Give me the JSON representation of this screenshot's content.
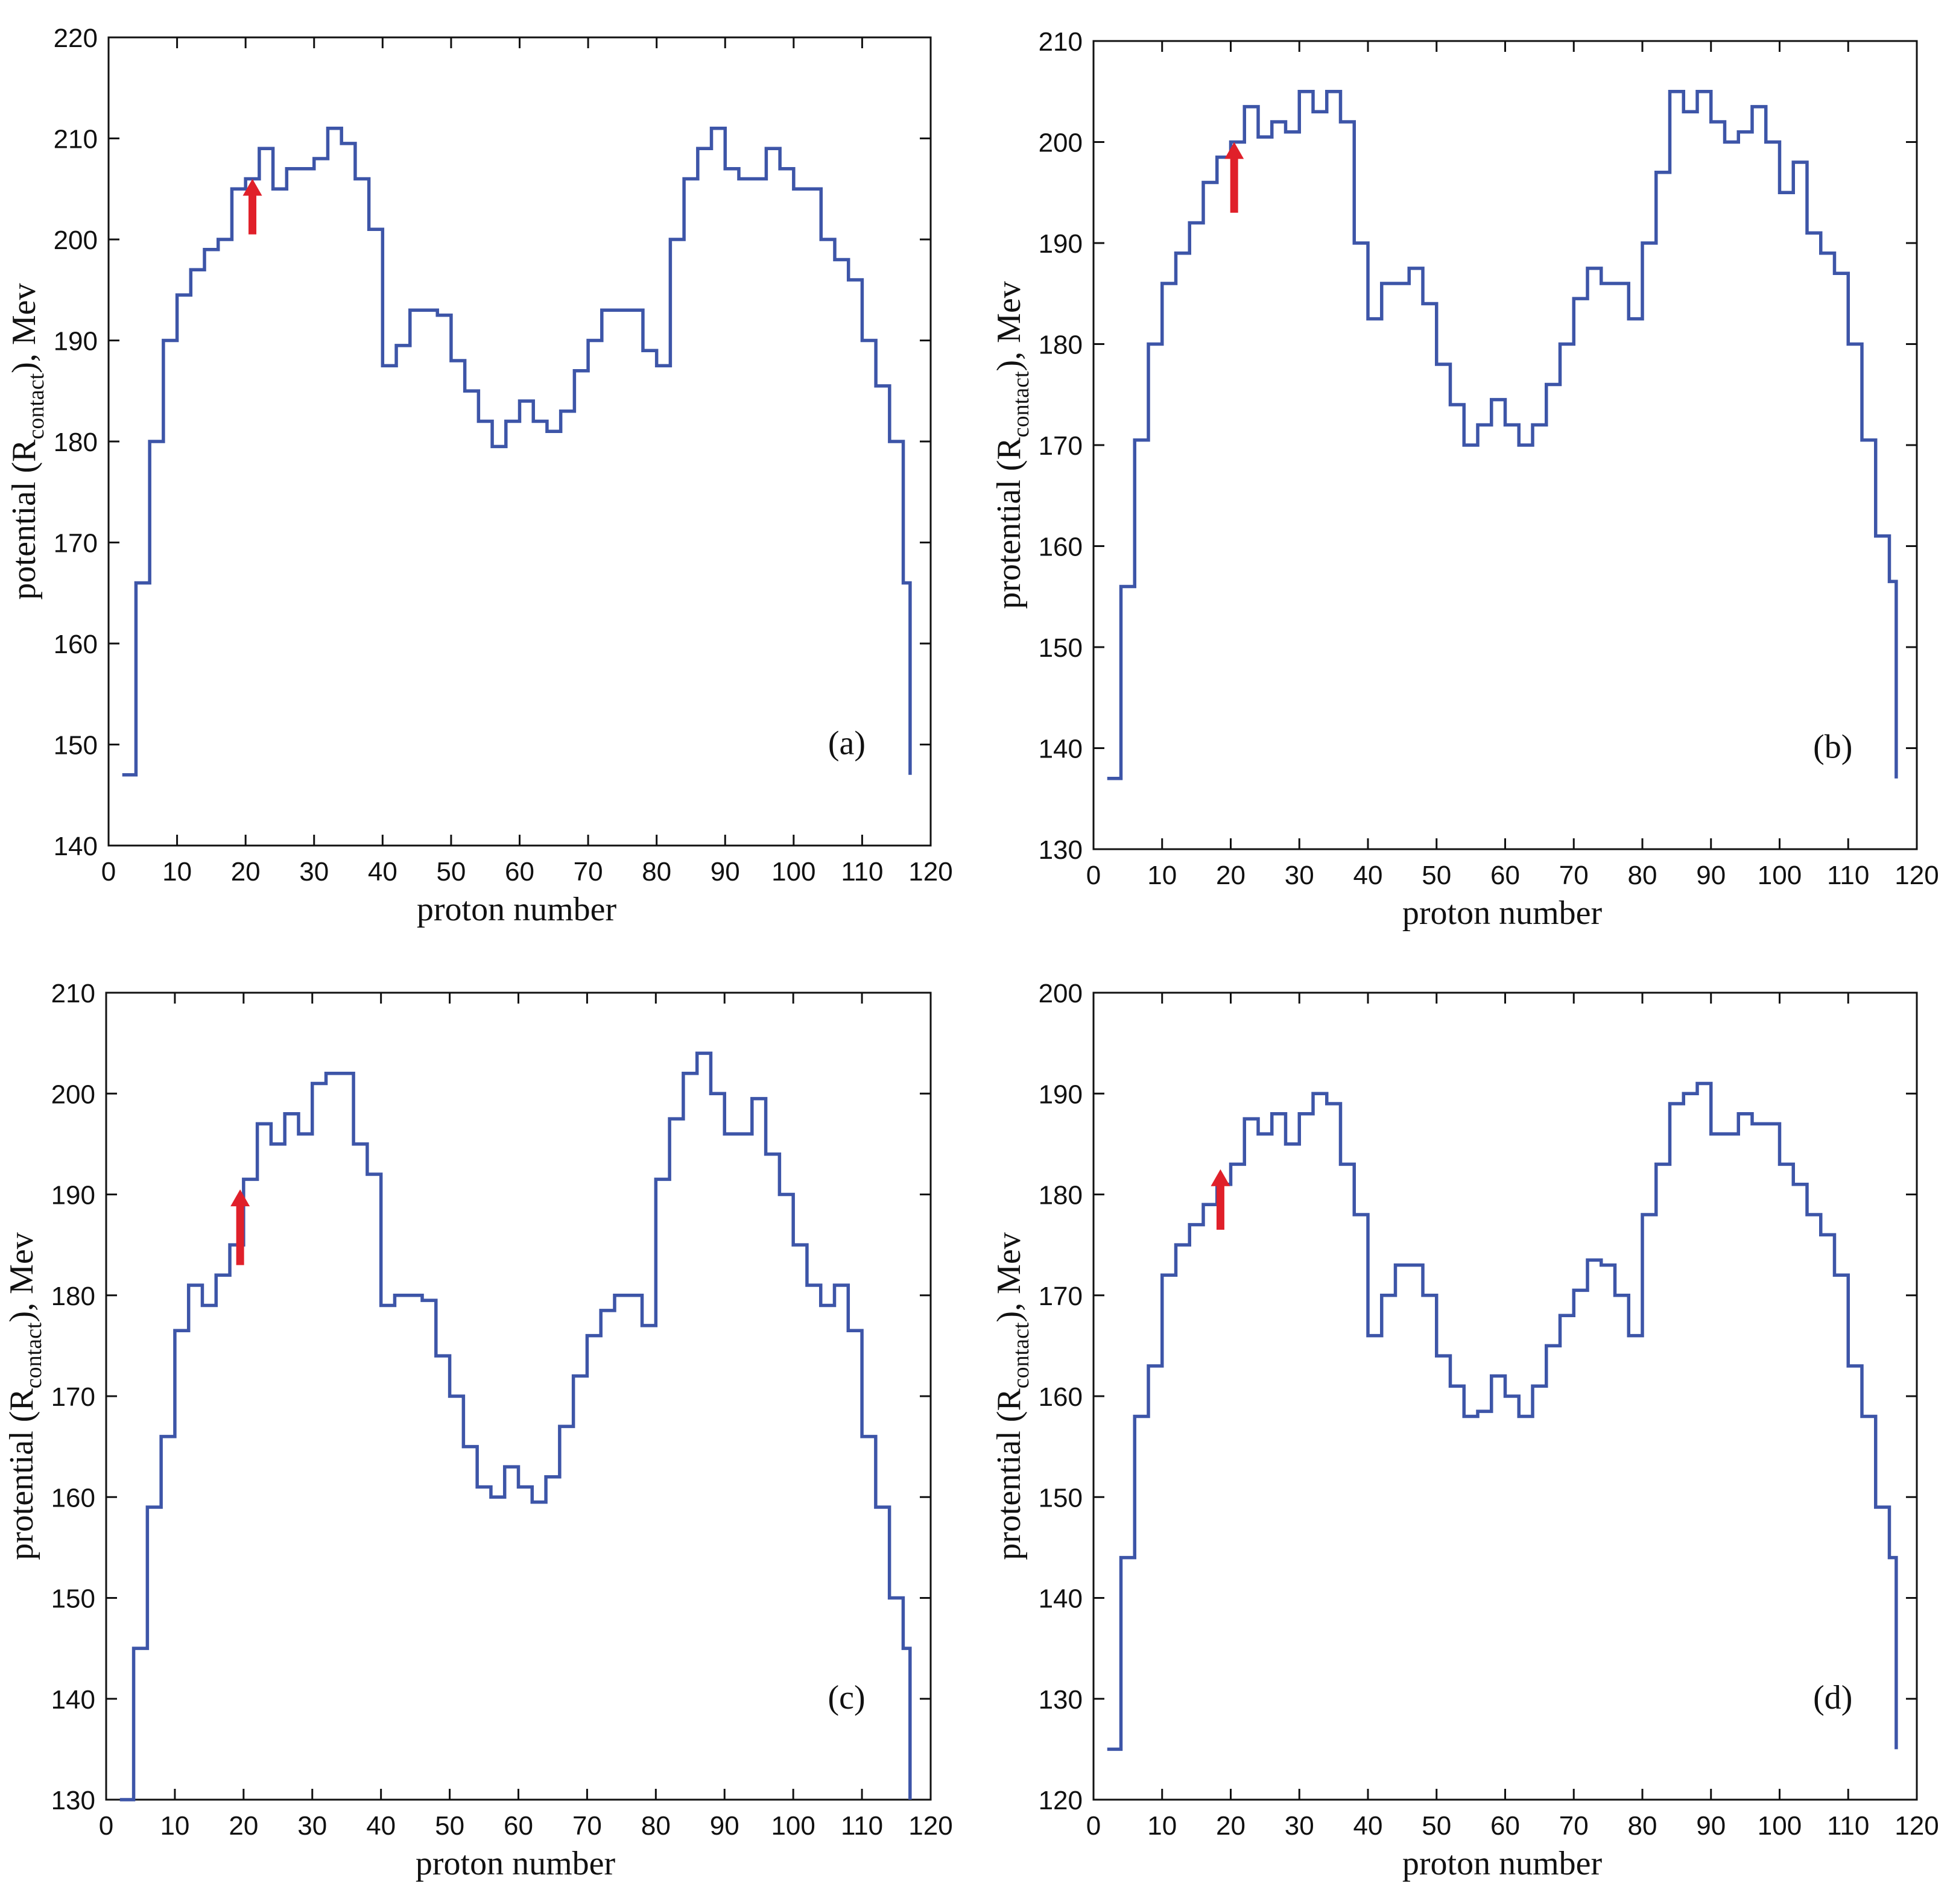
{
  "chart_data": [
    {
      "type": "line",
      "step": "post",
      "color": "#3d55a8",
      "xlabel": "proton number",
      "ylabel": "potential (R",
      "ylabel_sub": "contact",
      "ylabel_end": "), Mev",
      "annotation": "(a)",
      "xlim": [
        0,
        120
      ],
      "ylim": [
        140,
        220
      ],
      "xticks": [
        0,
        10,
        20,
        30,
        40,
        50,
        60,
        70,
        80,
        90,
        100,
        110,
        120
      ],
      "yticks": [
        140,
        150,
        160,
        170,
        180,
        190,
        200,
        210,
        220
      ],
      "x": [
        2,
        4,
        6,
        8,
        10,
        12,
        14,
        16,
        18,
        20,
        22,
        24,
        26,
        28,
        30,
        32,
        34,
        36,
        38,
        40,
        42,
        44,
        46,
        48,
        50,
        52,
        54,
        56,
        58,
        60,
        62,
        64,
        66,
        68,
        70,
        72,
        74,
        76,
        78,
        80,
        82,
        84,
        86,
        88,
        90,
        92,
        94,
        96,
        98,
        100,
        102,
        104,
        106,
        108,
        110,
        112,
        114,
        116,
        117
      ],
      "series": [
        {
          "values": [
            147,
            166,
            180,
            190,
            194.5,
            197,
            199,
            200,
            205,
            206,
            209,
            205,
            207,
            207,
            208,
            211,
            209.5,
            206,
            201,
            187.5,
            189.5,
            193,
            193,
            192.5,
            188,
            185,
            182,
            179.5,
            182,
            184,
            182,
            181,
            183,
            187,
            190,
            193,
            193,
            193,
            189,
            187.5,
            200,
            206,
            209,
            211,
            207,
            206,
            206,
            209,
            207,
            205,
            205,
            200,
            198,
            196,
            190,
            185.5,
            180,
            166,
            147
          ]
        }
      ]
    },
    {
      "type": "line",
      "step": "post",
      "color": "#3d55a8",
      "xlabel": "proton number",
      "ylabel": "protential (R",
      "ylabel_sub": "contact",
      "ylabel_end": "), Mev",
      "annotation": "(b)",
      "xlim": [
        0,
        120
      ],
      "ylim": [
        130,
        210
      ],
      "xticks": [
        0,
        10,
        20,
        30,
        40,
        50,
        60,
        70,
        80,
        90,
        100,
        110,
        120
      ],
      "yticks": [
        130,
        140,
        150,
        160,
        170,
        180,
        190,
        200,
        210
      ],
      "x": [
        2,
        4,
        6,
        8,
        10,
        12,
        14,
        16,
        18,
        20,
        22,
        24,
        26,
        28,
        30,
        32,
        34,
        36,
        38,
        40,
        42,
        44,
        46,
        48,
        50,
        52,
        54,
        56,
        58,
        60,
        62,
        64,
        66,
        68,
        70,
        72,
        74,
        76,
        78,
        80,
        82,
        84,
        86,
        88,
        90,
        92,
        94,
        96,
        98,
        100,
        102,
        104,
        106,
        108,
        110,
        112,
        114,
        116,
        117
      ],
      "series": [
        {
          "values": [
            137,
            156,
            170.5,
            180,
            186,
            189,
            192,
            196,
            198.5,
            200,
            203.5,
            200.5,
            202,
            201,
            205,
            203,
            205,
            202,
            190,
            182.5,
            186,
            186,
            187.5,
            184,
            178,
            174,
            170,
            172,
            174.5,
            172,
            170,
            172,
            176,
            180,
            184.5,
            187.5,
            186,
            186,
            182.5,
            190,
            197,
            205,
            203,
            205,
            202,
            200,
            201,
            203.5,
            200,
            195,
            198,
            191,
            189,
            187,
            180,
            170.5,
            161,
            156.5,
            137
          ]
        }
      ]
    },
    {
      "type": "line",
      "step": "post",
      "color": "#3d55a8",
      "xlabel": "proton number",
      "ylabel": "protential (R",
      "ylabel_sub": "contact",
      "ylabel_end": "), Mev",
      "annotation": "(c)",
      "xlim": [
        0,
        120
      ],
      "ylim": [
        130,
        210
      ],
      "xticks": [
        0,
        10,
        20,
        30,
        40,
        50,
        60,
        70,
        80,
        90,
        100,
        110,
        120
      ],
      "yticks": [
        130,
        140,
        150,
        160,
        170,
        180,
        190,
        200,
        210
      ],
      "x": [
        2,
        4,
        6,
        8,
        10,
        12,
        14,
        16,
        18,
        20,
        22,
        24,
        26,
        28,
        30,
        32,
        34,
        36,
        38,
        40,
        42,
        44,
        46,
        48,
        50,
        52,
        54,
        56,
        58,
        60,
        62,
        64,
        66,
        68,
        70,
        72,
        74,
        76,
        78,
        80,
        82,
        84,
        86,
        88,
        90,
        92,
        94,
        96,
        98,
        100,
        102,
        104,
        106,
        108,
        110,
        112,
        114,
        116,
        117
      ],
      "series": [
        {
          "values": [
            130,
            145,
            159,
            166,
            176.5,
            181,
            179,
            182,
            185,
            191.5,
            197,
            195,
            198,
            196,
            201,
            202,
            202,
            195,
            192,
            179,
            180,
            180,
            179.5,
            174,
            170,
            165,
            161,
            160,
            163,
            161,
            159.5,
            162,
            167,
            172,
            176,
            178.5,
            180,
            180,
            177,
            191.5,
            197.5,
            202,
            204,
            200,
            196,
            196,
            199.5,
            194,
            190,
            185,
            181,
            179,
            181,
            176.5,
            166,
            159,
            150,
            145,
            130
          ]
        }
      ]
    },
    {
      "type": "line",
      "step": "post",
      "color": "#3d55a8",
      "xlabel": "proton number",
      "ylabel": "protential (R",
      "ylabel_sub": "contact",
      "ylabel_end": "), Mev",
      "annotation": "(d)",
      "xlim": [
        0,
        120
      ],
      "ylim": [
        120,
        200
      ],
      "xticks": [
        0,
        10,
        20,
        30,
        40,
        50,
        60,
        70,
        80,
        90,
        100,
        110,
        120
      ],
      "yticks": [
        120,
        130,
        140,
        150,
        160,
        170,
        180,
        190,
        200
      ],
      "x": [
        2,
        4,
        6,
        8,
        10,
        12,
        14,
        16,
        18,
        20,
        22,
        24,
        26,
        28,
        30,
        32,
        34,
        36,
        38,
        40,
        42,
        44,
        46,
        48,
        50,
        52,
        54,
        56,
        58,
        60,
        62,
        64,
        66,
        68,
        70,
        72,
        74,
        76,
        78,
        80,
        82,
        84,
        86,
        88,
        90,
        92,
        94,
        96,
        98,
        100,
        102,
        104,
        106,
        108,
        110,
        112,
        114,
        116,
        117
      ],
      "series": [
        {
          "values": [
            125,
            144,
            158,
            163,
            172,
            175,
            177,
            179,
            181,
            183,
            187.5,
            186,
            188,
            185,
            188,
            190,
            189,
            183,
            178,
            166,
            170,
            173,
            173,
            170,
            164,
            161,
            158,
            158.5,
            162,
            160,
            158,
            161,
            165,
            168,
            170.5,
            173.5,
            173,
            170,
            166,
            178,
            183,
            189,
            190,
            191,
            186,
            186,
            188,
            187,
            187,
            183,
            181,
            178,
            176,
            172,
            163,
            158,
            149,
            144,
            125
          ]
        }
      ]
    }
  ]
}
